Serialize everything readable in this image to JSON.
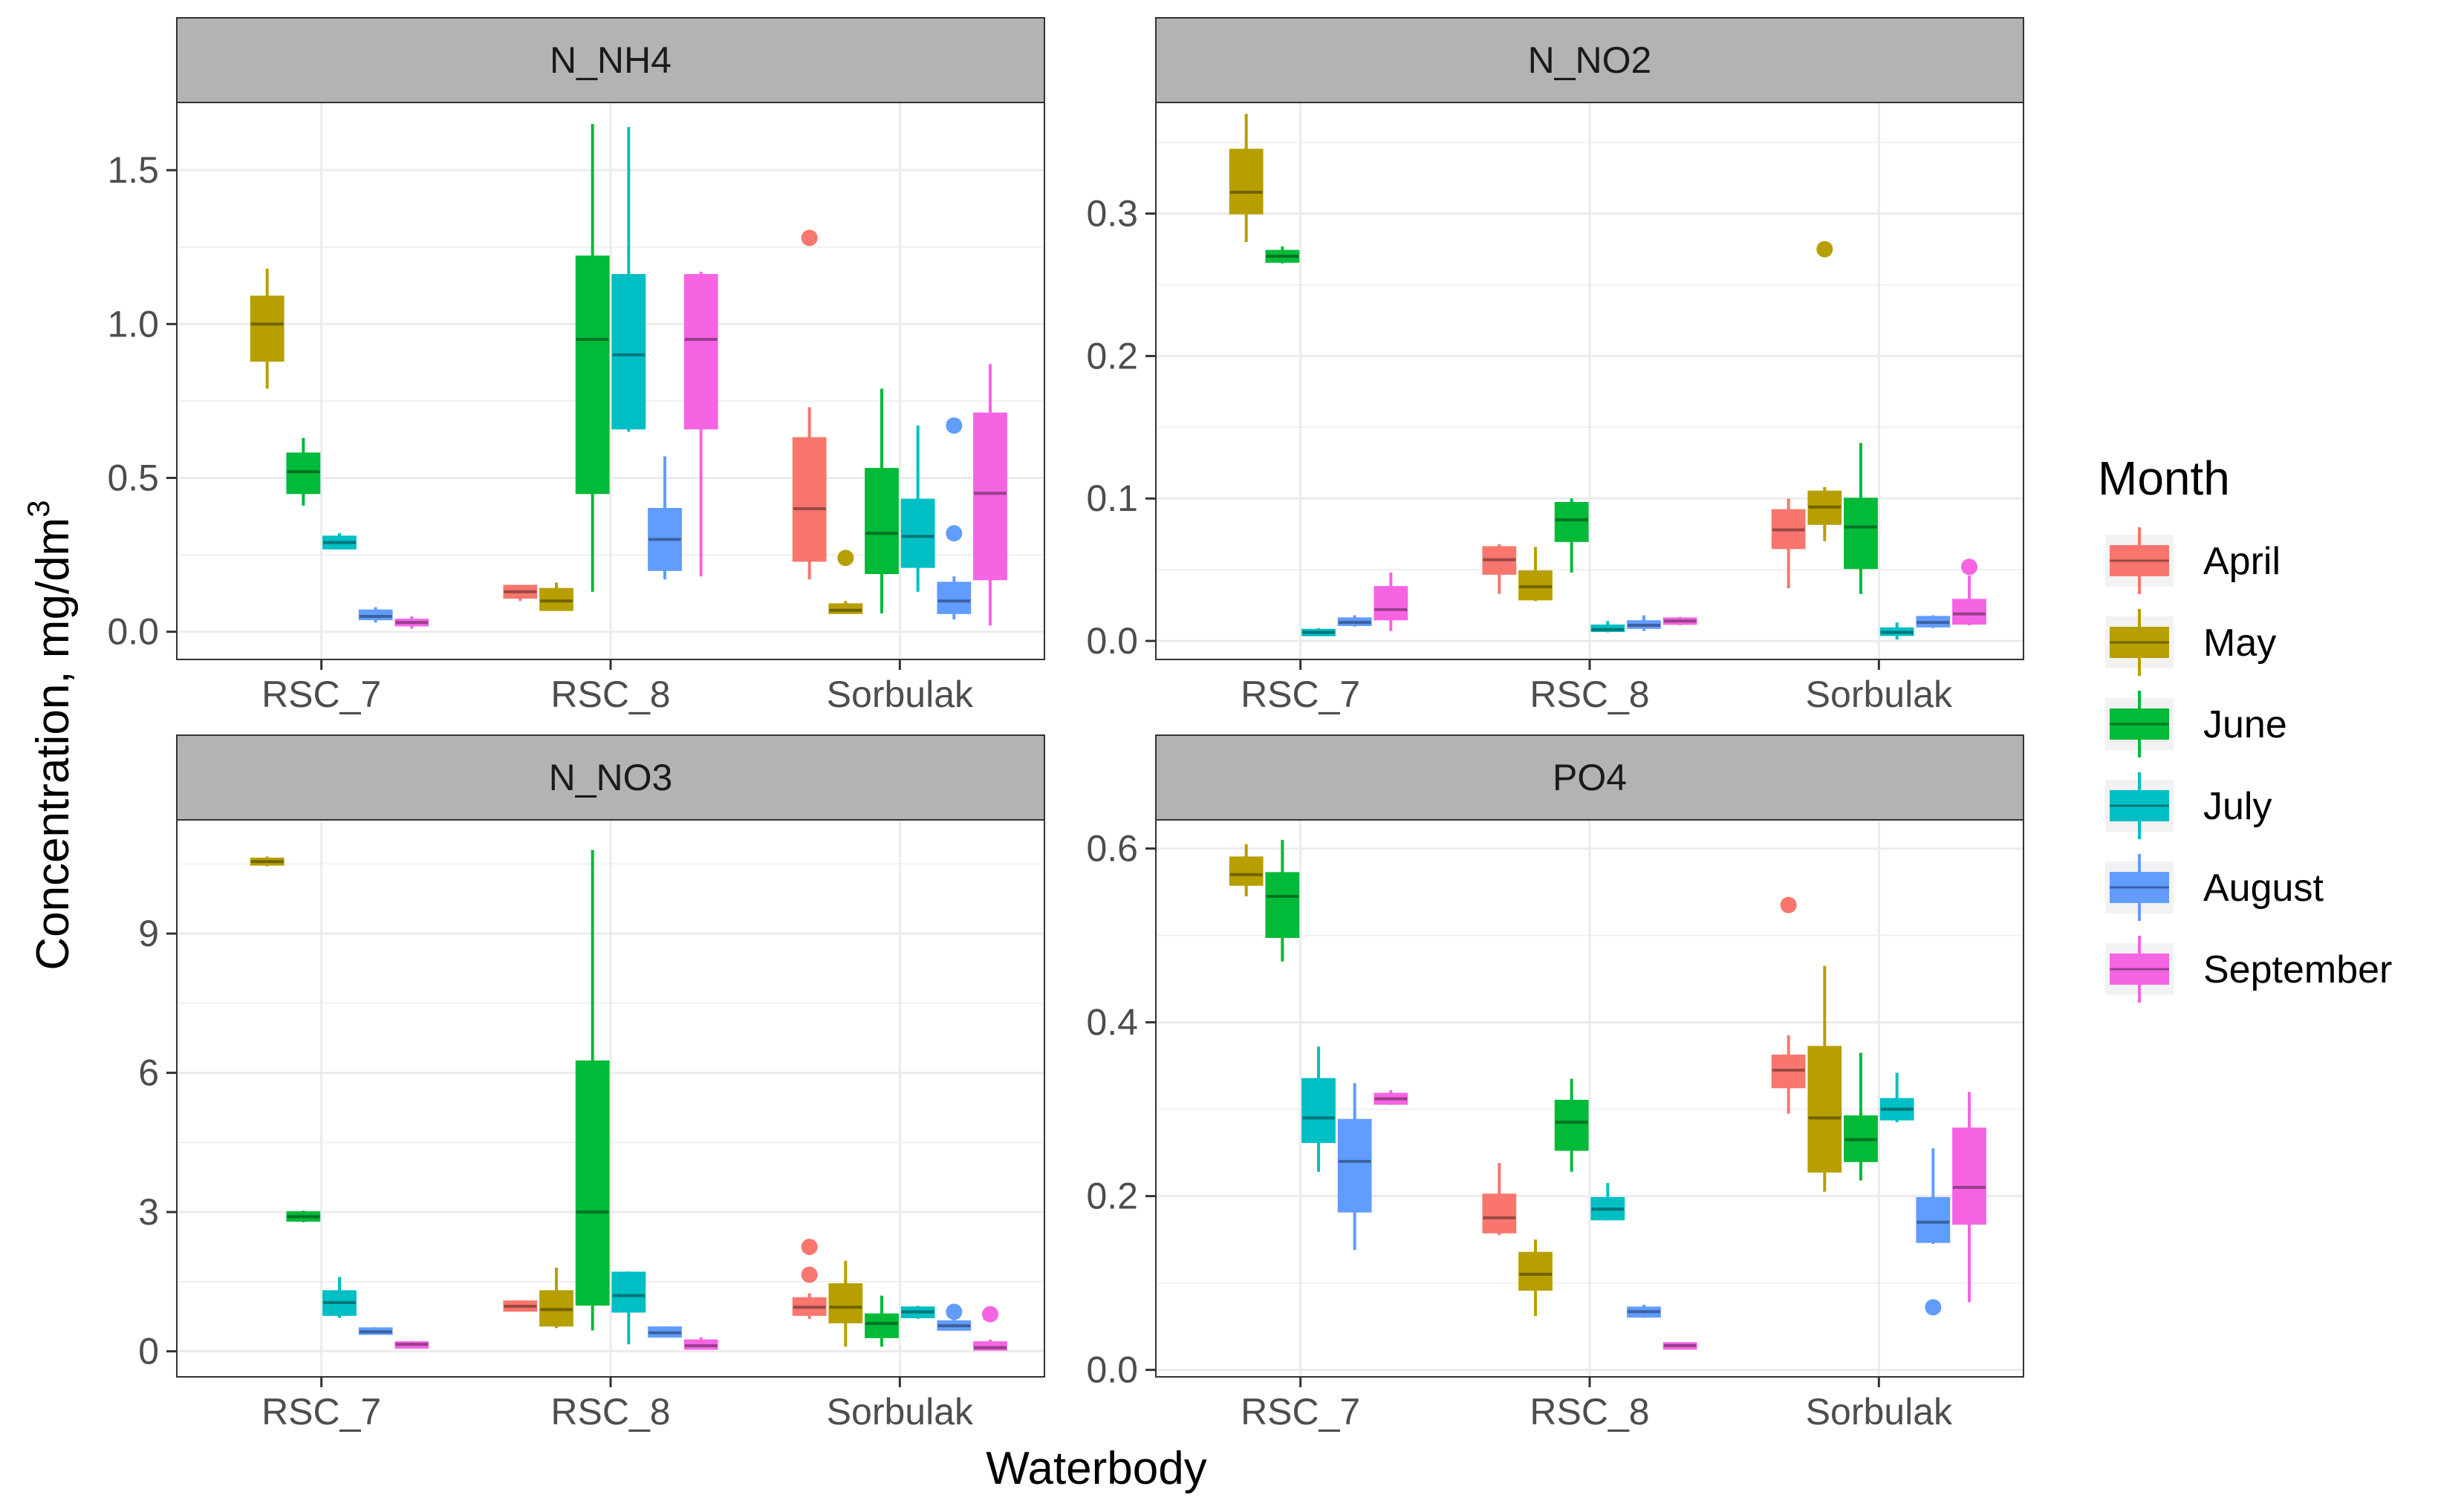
{
  "chart_data": {
    "type": "box",
    "xlabel": "Waterbody",
    "ylabel_main": "Concentration, mg/dm",
    "ylabel_sup": "3",
    "categories": [
      "RSC_7",
      "RSC_8",
      "Sorbulak"
    ],
    "months": [
      "April",
      "May",
      "June",
      "July",
      "August",
      "September"
    ],
    "colors": [
      "#F8766D",
      "#B79F00",
      "#00BA38",
      "#00BFC4",
      "#619CFF",
      "#F564E3"
    ],
    "legend": {
      "title": "Month",
      "position": "right"
    },
    "panels": [
      {
        "name": "N_NH4",
        "ylim": [
          -0.09,
          1.72
        ],
        "yticks": [
          0.0,
          0.5,
          1.0,
          1.5
        ],
        "ytick_labels": [
          "0.0",
          "0.5",
          "1.0",
          "1.5"
        ],
        "boxes": [
          {
            "cat": 0,
            "m": 1,
            "min": 0.79,
            "q1": 0.88,
            "med": 1.0,
            "q3": 1.09,
            "max": 1.18
          },
          {
            "cat": 0,
            "m": 2,
            "min": 0.41,
            "q1": 0.45,
            "med": 0.52,
            "q3": 0.58,
            "max": 0.63
          },
          {
            "cat": 0,
            "m": 3,
            "min": 0.27,
            "q1": 0.27,
            "med": 0.29,
            "q3": 0.31,
            "max": 0.32
          },
          {
            "cat": 0,
            "m": 4,
            "min": 0.03,
            "q1": 0.04,
            "med": 0.05,
            "q3": 0.07,
            "max": 0.08
          },
          {
            "cat": 0,
            "m": 5,
            "min": 0.01,
            "q1": 0.02,
            "med": 0.03,
            "q3": 0.04,
            "max": 0.05
          },
          {
            "cat": 1,
            "m": 0,
            "min": 0.1,
            "q1": 0.11,
            "med": 0.13,
            "q3": 0.15,
            "max": 0.15
          },
          {
            "cat": 1,
            "m": 1,
            "min": 0.07,
            "q1": 0.07,
            "med": 0.1,
            "q3": 0.14,
            "max": 0.16
          },
          {
            "cat": 1,
            "m": 2,
            "min": 0.13,
            "q1": 0.45,
            "med": 0.95,
            "q3": 1.22,
            "max": 1.65
          },
          {
            "cat": 1,
            "m": 3,
            "min": 0.65,
            "q1": 0.66,
            "med": 0.9,
            "q3": 1.16,
            "max": 1.64
          },
          {
            "cat": 1,
            "m": 4,
            "min": 0.17,
            "q1": 0.2,
            "med": 0.3,
            "q3": 0.4,
            "max": 0.57
          },
          {
            "cat": 1,
            "m": 5,
            "min": 0.18,
            "q1": 0.66,
            "med": 0.95,
            "q3": 1.16,
            "max": 1.17
          },
          {
            "cat": 2,
            "m": 0,
            "min": 0.17,
            "q1": 0.23,
            "med": 0.4,
            "q3": 0.63,
            "max": 0.73,
            "outliers": [
              1.28
            ]
          },
          {
            "cat": 2,
            "m": 1,
            "min": 0.06,
            "q1": 0.06,
            "med": 0.07,
            "q3": 0.09,
            "max": 0.1,
            "outliers": [
              0.24
            ]
          },
          {
            "cat": 2,
            "m": 2,
            "min": 0.06,
            "q1": 0.19,
            "med": 0.32,
            "q3": 0.53,
            "max": 0.79
          },
          {
            "cat": 2,
            "m": 3,
            "min": 0.13,
            "q1": 0.21,
            "med": 0.31,
            "q3": 0.43,
            "max": 0.67
          },
          {
            "cat": 2,
            "m": 4,
            "min": 0.04,
            "q1": 0.06,
            "med": 0.1,
            "q3": 0.16,
            "max": 0.18,
            "outliers": [
              0.32,
              0.67
            ]
          },
          {
            "cat": 2,
            "m": 5,
            "min": 0.02,
            "q1": 0.17,
            "med": 0.45,
            "q3": 0.71,
            "max": 0.87
          }
        ]
      },
      {
        "name": "N_NO2",
        "ylim": [
          -0.013,
          0.378
        ],
        "yticks": [
          0.0,
          0.1,
          0.2,
          0.3
        ],
        "ytick_labels": [
          "0.0",
          "0.1",
          "0.2",
          "0.3"
        ],
        "boxes": [
          {
            "cat": 0,
            "m": 1,
            "min": 0.28,
            "q1": 0.3,
            "med": 0.315,
            "q3": 0.345,
            "max": 0.37
          },
          {
            "cat": 0,
            "m": 2,
            "min": 0.265,
            "q1": 0.266,
            "med": 0.27,
            "q3": 0.274,
            "max": 0.277
          },
          {
            "cat": 0,
            "m": 3,
            "min": 0.004,
            "q1": 0.005,
            "med": 0.006,
            "q3": 0.008,
            "max": 0.009
          },
          {
            "cat": 0,
            "m": 4,
            "min": 0.01,
            "q1": 0.011,
            "med": 0.013,
            "q3": 0.016,
            "max": 0.018
          },
          {
            "cat": 0,
            "m": 5,
            "min": 0.007,
            "q1": 0.015,
            "med": 0.022,
            "q3": 0.038,
            "max": 0.048
          },
          {
            "cat": 1,
            "m": 0,
            "min": 0.033,
            "q1": 0.047,
            "med": 0.057,
            "q3": 0.066,
            "max": 0.068
          },
          {
            "cat": 1,
            "m": 1,
            "min": 0.028,
            "q1": 0.029,
            "med": 0.038,
            "q3": 0.049,
            "max": 0.066
          },
          {
            "cat": 1,
            "m": 2,
            "min": 0.048,
            "q1": 0.07,
            "med": 0.085,
            "q3": 0.097,
            "max": 0.1
          },
          {
            "cat": 1,
            "m": 3,
            "min": 0.006,
            "q1": 0.007,
            "med": 0.008,
            "q3": 0.011,
            "max": 0.014
          },
          {
            "cat": 1,
            "m": 4,
            "min": 0.007,
            "q1": 0.009,
            "med": 0.011,
            "q3": 0.014,
            "max": 0.018
          },
          {
            "cat": 1,
            "m": 5,
            "min": 0.011,
            "q1": 0.012,
            "med": 0.014,
            "q3": 0.016,
            "max": 0.017
          },
          {
            "cat": 2,
            "m": 0,
            "min": 0.037,
            "q1": 0.065,
            "med": 0.078,
            "q3": 0.092,
            "max": 0.1
          },
          {
            "cat": 2,
            "m": 1,
            "min": 0.07,
            "q1": 0.082,
            "med": 0.094,
            "q3": 0.105,
            "max": 0.108,
            "outliers": [
              0.275
            ]
          },
          {
            "cat": 2,
            "m": 2,
            "min": 0.033,
            "q1": 0.051,
            "med": 0.08,
            "q3": 0.1,
            "max": 0.139
          },
          {
            "cat": 2,
            "m": 3,
            "min": 0.001,
            "q1": 0.004,
            "med": 0.006,
            "q3": 0.009,
            "max": 0.013
          },
          {
            "cat": 2,
            "m": 4,
            "min": 0.009,
            "q1": 0.01,
            "med": 0.013,
            "q3": 0.017,
            "max": 0.018
          },
          {
            "cat": 2,
            "m": 5,
            "min": 0.011,
            "q1": 0.012,
            "med": 0.019,
            "q3": 0.029,
            "max": 0.046,
            "outliers": [
              0.052
            ]
          }
        ]
      },
      {
        "name": "N_NO3",
        "ylim": [
          -0.55,
          11.45
        ],
        "yticks": [
          0,
          3,
          6,
          9
        ],
        "ytick_labels": [
          "0",
          "3",
          "6",
          "9"
        ],
        "boxes": [
          {
            "cat": 0,
            "m": 1,
            "min": 10.45,
            "q1": 10.48,
            "med": 10.55,
            "q3": 10.62,
            "max": 10.66
          },
          {
            "cat": 0,
            "m": 2,
            "min": 2.78,
            "q1": 2.81,
            "med": 2.9,
            "q3": 3.0,
            "max": 3.03
          },
          {
            "cat": 0,
            "m": 3,
            "min": 0.72,
            "q1": 0.78,
            "med": 1.05,
            "q3": 1.3,
            "max": 1.6
          },
          {
            "cat": 0,
            "m": 4,
            "min": 0.36,
            "q1": 0.37,
            "med": 0.42,
            "q3": 0.5,
            "max": 0.52
          },
          {
            "cat": 0,
            "m": 5,
            "min": 0.1,
            "q1": 0.11,
            "med": 0.15,
            "q3": 0.2,
            "max": 0.22
          },
          {
            "cat": 1,
            "m": 0,
            "min": 0.85,
            "q1": 0.87,
            "med": 0.97,
            "q3": 1.08,
            "max": 1.1
          },
          {
            "cat": 1,
            "m": 1,
            "min": 0.5,
            "q1": 0.55,
            "med": 0.9,
            "q3": 1.3,
            "max": 1.8
          },
          {
            "cat": 1,
            "m": 2,
            "min": 0.45,
            "q1": 1.0,
            "med": 3.0,
            "q3": 6.25,
            "max": 10.8
          },
          {
            "cat": 1,
            "m": 3,
            "min": 0.15,
            "q1": 0.85,
            "med": 1.2,
            "q3": 1.7,
            "max": 1.72
          },
          {
            "cat": 1,
            "m": 4,
            "min": 0.3,
            "q1": 0.31,
            "med": 0.4,
            "q3": 0.52,
            "max": 0.54
          },
          {
            "cat": 1,
            "m": 5,
            "min": 0.04,
            "q1": 0.05,
            "med": 0.12,
            "q3": 0.24,
            "max": 0.3
          },
          {
            "cat": 2,
            "m": 0,
            "min": 0.7,
            "q1": 0.78,
            "med": 0.95,
            "q3": 1.15,
            "max": 1.25,
            "outliers": [
              1.65,
              2.25
            ]
          },
          {
            "cat": 2,
            "m": 1,
            "min": 0.1,
            "q1": 0.62,
            "med": 0.95,
            "q3": 1.45,
            "max": 1.95
          },
          {
            "cat": 2,
            "m": 2,
            "min": 0.1,
            "q1": 0.3,
            "med": 0.6,
            "q3": 0.8,
            "max": 1.2
          },
          {
            "cat": 2,
            "m": 3,
            "min": 0.7,
            "q1": 0.73,
            "med": 0.85,
            "q3": 0.95,
            "max": 0.98
          },
          {
            "cat": 2,
            "m": 4,
            "min": 0.45,
            "q1": 0.46,
            "med": 0.55,
            "q3": 0.65,
            "max": 0.68,
            "outliers": [
              0.85
            ]
          },
          {
            "cat": 2,
            "m": 5,
            "min": 0.02,
            "q1": 0.03,
            "med": 0.08,
            "q3": 0.2,
            "max": 0.25,
            "outliers": [
              0.8
            ]
          }
        ]
      },
      {
        "name": "PO4",
        "ylim": [
          -0.008,
          0.633
        ],
        "yticks": [
          0.0,
          0.2,
          0.4,
          0.6
        ],
        "ytick_labels": [
          "0.0",
          "0.2",
          "0.4",
          "0.6"
        ],
        "boxes": [
          {
            "cat": 0,
            "m": 1,
            "min": 0.545,
            "q1": 0.558,
            "med": 0.57,
            "q3": 0.59,
            "max": 0.605
          },
          {
            "cat": 0,
            "m": 2,
            "min": 0.47,
            "q1": 0.498,
            "med": 0.545,
            "q3": 0.572,
            "max": 0.61
          },
          {
            "cat": 0,
            "m": 3,
            "min": 0.228,
            "q1": 0.262,
            "med": 0.29,
            "q3": 0.335,
            "max": 0.372
          },
          {
            "cat": 0,
            "m": 4,
            "min": 0.138,
            "q1": 0.182,
            "med": 0.24,
            "q3": 0.288,
            "max": 0.33
          },
          {
            "cat": 0,
            "m": 5,
            "min": 0.305,
            "q1": 0.306,
            "med": 0.312,
            "q3": 0.318,
            "max": 0.322
          },
          {
            "cat": 1,
            "m": 0,
            "min": 0.155,
            "q1": 0.158,
            "med": 0.175,
            "q3": 0.202,
            "max": 0.238
          },
          {
            "cat": 1,
            "m": 1,
            "min": 0.062,
            "q1": 0.092,
            "med": 0.11,
            "q3": 0.135,
            "max": 0.15
          },
          {
            "cat": 1,
            "m": 2,
            "min": 0.228,
            "q1": 0.253,
            "med": 0.285,
            "q3": 0.31,
            "max": 0.335
          },
          {
            "cat": 1,
            "m": 3,
            "min": 0.172,
            "q1": 0.173,
            "med": 0.185,
            "q3": 0.198,
            "max": 0.215
          },
          {
            "cat": 1,
            "m": 4,
            "min": 0.06,
            "q1": 0.061,
            "med": 0.067,
            "q3": 0.072,
            "max": 0.075
          },
          {
            "cat": 1,
            "m": 5,
            "min": 0.024,
            "q1": 0.025,
            "med": 0.028,
            "q3": 0.031,
            "max": 0.032
          },
          {
            "cat": 2,
            "m": 0,
            "min": 0.295,
            "q1": 0.325,
            "med": 0.345,
            "q3": 0.362,
            "max": 0.385,
            "outliers": [
              0.535
            ]
          },
          {
            "cat": 2,
            "m": 1,
            "min": 0.205,
            "q1": 0.228,
            "med": 0.29,
            "q3": 0.372,
            "max": 0.465
          },
          {
            "cat": 2,
            "m": 2,
            "min": 0.218,
            "q1": 0.24,
            "med": 0.265,
            "q3": 0.292,
            "max": 0.365
          },
          {
            "cat": 2,
            "m": 3,
            "min": 0.285,
            "q1": 0.288,
            "med": 0.3,
            "q3": 0.312,
            "max": 0.342
          },
          {
            "cat": 2,
            "m": 4,
            "min": 0.145,
            "q1": 0.147,
            "med": 0.17,
            "q3": 0.198,
            "max": 0.255,
            "outliers": [
              0.072
            ]
          },
          {
            "cat": 2,
            "m": 5,
            "min": 0.078,
            "q1": 0.168,
            "med": 0.21,
            "q3": 0.278,
            "max": 0.32
          }
        ]
      }
    ]
  }
}
